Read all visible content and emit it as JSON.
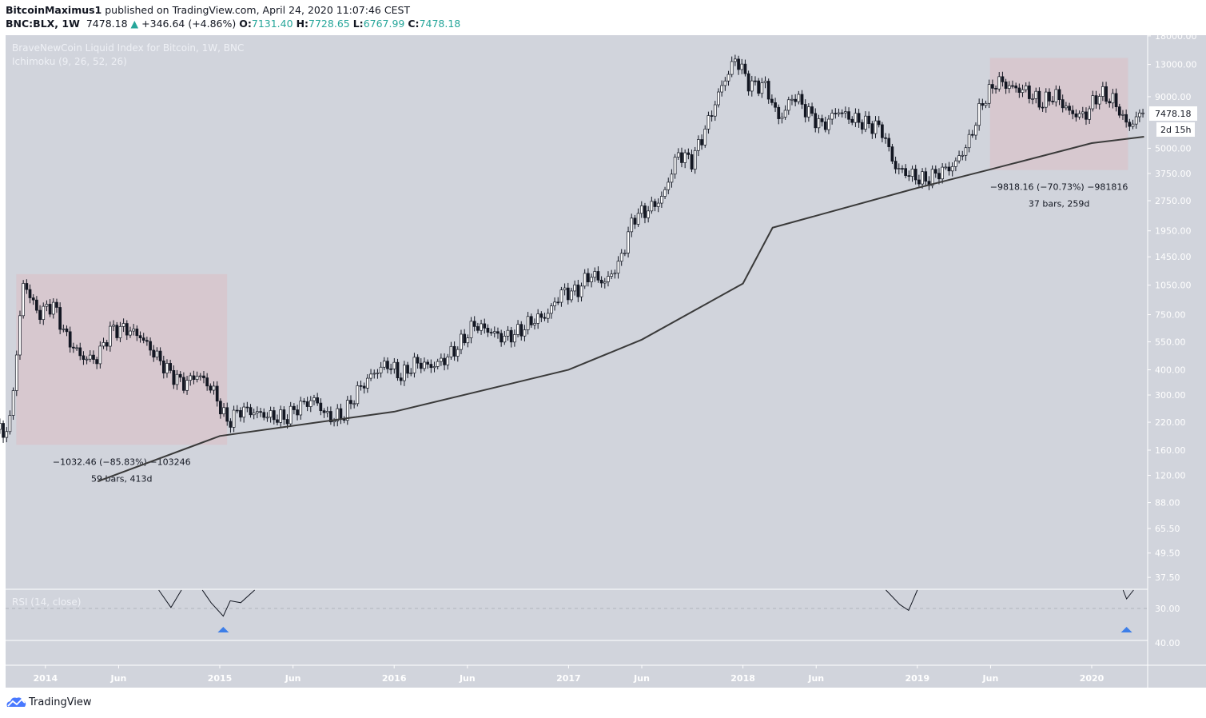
{
  "header": {
    "author": "BitcoinMaximus1",
    "published": "published on TradingView.com, April 24, 2020 11:07:46 CEST",
    "symbol": "BNC:BLX, 1W",
    "last": "7478.18",
    "change": "+346.64 (+4.86%)",
    "o_label": "O:",
    "o": "7131.40",
    "h_label": "H:",
    "h": "7728.65",
    "l_label": "L:",
    "l": "6767.99",
    "c_label": "C:",
    "c": "7478.18"
  },
  "legend": {
    "title": "BraveNewCoin Liquid Index for Bitcoin, 1W, BNC",
    "indicator": "Ichimoku (9, 26, 52, 26)",
    "rsi": "RSI (14, close)"
  },
  "footer": {
    "brand": "TradingView"
  },
  "colors": {
    "background": "#d1d4dc",
    "up": "#ffffff",
    "down": "#131722",
    "box": "#d8c5cc",
    "ma": "#3a3a3a",
    "arrow": "#3d7ee8",
    "accent": "#26a69a"
  },
  "chart_data": {
    "type": "candlestick",
    "scale": "log",
    "ylim": [
      34,
      19000
    ],
    "y_ticks": [
      "18000.00",
      "13000.00",
      "9000.00",
      "5000.00",
      "3750.00",
      "2750.00",
      "1950.00",
      "1450.00",
      "1050.00",
      "750.00",
      "550.00",
      "400.00",
      "300.00",
      "220.00",
      "160.00",
      "120.00",
      "88.00",
      "65.50",
      "49.50",
      "37.50"
    ],
    "x_ticks": [
      {
        "t": 2014.0,
        "label": "2014"
      },
      {
        "t": 2014.42,
        "label": "Jun"
      },
      {
        "t": 2015.0,
        "label": "2015"
      },
      {
        "t": 2015.42,
        "label": "Jun"
      },
      {
        "t": 2016.0,
        "label": "2016"
      },
      {
        "t": 2016.42,
        "label": "Jun"
      },
      {
        "t": 2017.0,
        "label": "2017"
      },
      {
        "t": 2017.42,
        "label": "Jun"
      },
      {
        "t": 2018.0,
        "label": "2018"
      },
      {
        "t": 2018.42,
        "label": "Jun"
      },
      {
        "t": 2019.0,
        "label": "2019"
      },
      {
        "t": 2019.42,
        "label": "Jun"
      },
      {
        "t": 2020.0,
        "label": "2020"
      }
    ],
    "monthly_close": [
      [
        "2013-10",
        200
      ],
      [
        "2013-11",
        1100
      ],
      [
        "2013-12",
        750
      ],
      [
        "2014-01",
        850
      ],
      [
        "2014-02",
        570
      ],
      [
        "2014-03",
        460
      ],
      [
        "2014-04",
        450
      ],
      [
        "2014-05",
        630
      ],
      [
        "2014-06",
        640
      ],
      [
        "2014-07",
        590
      ],
      [
        "2014-08",
        480
      ],
      [
        "2014-09",
        390
      ],
      [
        "2014-10",
        340
      ],
      [
        "2014-11",
        380
      ],
      [
        "2014-12",
        320
      ],
      [
        "2015-01",
        220
      ],
      [
        "2015-02",
        255
      ],
      [
        "2015-03",
        245
      ],
      [
        "2015-04",
        235
      ],
      [
        "2015-05",
        230
      ],
      [
        "2015-06",
        265
      ],
      [
        "2015-07",
        285
      ],
      [
        "2015-08",
        230
      ],
      [
        "2015-09",
        237
      ],
      [
        "2015-10",
        315
      ],
      [
        "2015-11",
        380
      ],
      [
        "2015-12",
        430
      ],
      [
        "2016-01",
        370
      ],
      [
        "2016-02",
        435
      ],
      [
        "2016-03",
        415
      ],
      [
        "2016-04",
        450
      ],
      [
        "2016-05",
        530
      ],
      [
        "2016-06",
        670
      ],
      [
        "2016-07",
        625
      ],
      [
        "2016-08",
        575
      ],
      [
        "2016-09",
        610
      ],
      [
        "2016-10",
        700
      ],
      [
        "2016-11",
        745
      ],
      [
        "2016-12",
        965
      ],
      [
        "2017-01",
        970
      ],
      [
        "2017-02",
        1190
      ],
      [
        "2017-03",
        1080
      ],
      [
        "2017-04",
        1350
      ],
      [
        "2017-05",
        2300
      ],
      [
        "2017-06",
        2480
      ],
      [
        "2017-07",
        2870
      ],
      [
        "2017-08",
        4700
      ],
      [
        "2017-09",
        4340
      ],
      [
        "2017-10",
        6450
      ],
      [
        "2017-11",
        10000
      ],
      [
        "2017-12",
        14000
      ],
      [
        "2018-01",
        10200
      ],
      [
        "2018-02",
        10300
      ],
      [
        "2018-03",
        6900
      ],
      [
        "2018-04",
        9200
      ],
      [
        "2018-05",
        7500
      ],
      [
        "2018-06",
        6400
      ],
      [
        "2018-07",
        7700
      ],
      [
        "2018-08",
        7000
      ],
      [
        "2018-09",
        6600
      ],
      [
        "2018-10",
        6300
      ],
      [
        "2018-11",
        4000
      ],
      [
        "2018-12",
        3700
      ],
      [
        "2019-01",
        3450
      ],
      [
        "2019-02",
        3800
      ],
      [
        "2019-03",
        4100
      ],
      [
        "2019-04",
        5300
      ],
      [
        "2019-05",
        8500
      ],
      [
        "2019-06",
        10800
      ],
      [
        "2019-07",
        10000
      ],
      [
        "2019-08",
        9600
      ],
      [
        "2019-09",
        8300
      ],
      [
        "2019-10",
        9200
      ],
      [
        "2019-11",
        7500
      ],
      [
        "2019-12",
        7200
      ],
      [
        "2020-01",
        9350
      ],
      [
        "2020-02",
        8600
      ],
      [
        "2020-03",
        6400
      ],
      [
        "2020-04",
        7478.18
      ]
    ],
    "moving_average": [
      [
        2014.3,
        112
      ],
      [
        2015.0,
        188
      ],
      [
        2016.0,
        248
      ],
      [
        2017.0,
        400
      ],
      [
        2017.42,
        564
      ],
      [
        2018.0,
        1069
      ],
      [
        2018.17,
        2021
      ],
      [
        2019.0,
        3180
      ],
      [
        2019.42,
        3930
      ],
      [
        2020.0,
        5300
      ],
      [
        2020.3,
        5700
      ]
    ],
    "ranges": [
      {
        "from": "2013-11",
        "to": "2015-01",
        "top": 1190,
        "bottom": 170,
        "label1": "−1032.46 (−85.83%) −103246",
        "label2": "59 bars, 413d"
      },
      {
        "from": "2019-06",
        "to": "2020-03",
        "top": 14000,
        "bottom": 3900,
        "label1": "−9818.16 (−70.73%) −981816",
        "label2": "37 bars, 259d"
      }
    ],
    "last_price": {
      "value": "7478.18",
      "countdown": "2d 15h"
    },
    "rsi": {
      "level_label": "30.00",
      "lower_label": "40.00",
      "segments": [
        [
          [
            2014.65,
            40
          ],
          [
            2014.72,
            30.5
          ],
          [
            2014.78,
            40
          ]
        ],
        [
          [
            2014.9,
            40
          ],
          [
            2014.95,
            33
          ],
          [
            2015.02,
            26
          ],
          [
            2015.06,
            34
          ],
          [
            2015.12,
            33
          ],
          [
            2015.2,
            40
          ]
        ],
        [
          [
            2018.82,
            40
          ],
          [
            2018.9,
            32
          ],
          [
            2018.95,
            29
          ],
          [
            2019.0,
            40
          ]
        ],
        [
          [
            2020.18,
            40
          ],
          [
            2020.2,
            35
          ],
          [
            2020.24,
            40
          ]
        ]
      ],
      "signals": [
        2015.02,
        2020.2
      ]
    }
  }
}
